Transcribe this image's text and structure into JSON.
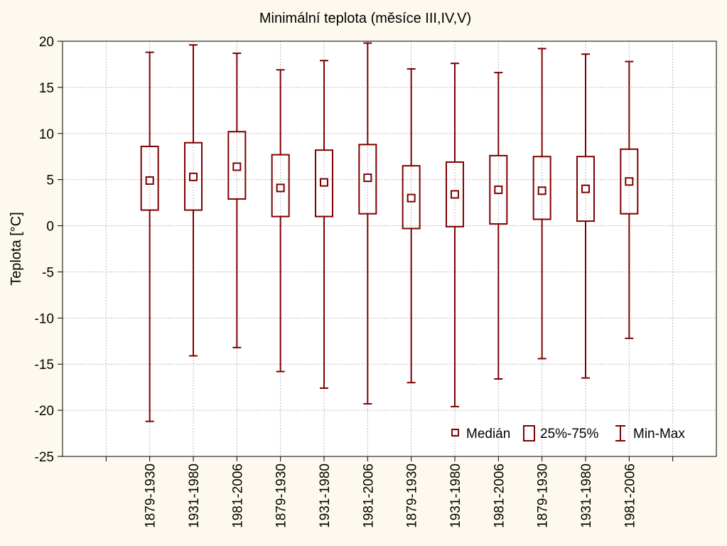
{
  "chart_data": {
    "type": "boxplot",
    "title": "Minimální teplota (měsíce III,IV,V)",
    "xlabel": "",
    "ylabel": "Teplota [°C]",
    "ylim": [
      -25,
      20
    ],
    "yticks": [
      20,
      15,
      10,
      5,
      0,
      -5,
      -10,
      -15,
      -20,
      -25
    ],
    "ytick_labels": [
      "20",
      "15",
      "10",
      "5",
      "0",
      "-5",
      "-10",
      "-15",
      "-20",
      "-25"
    ],
    "grid": true,
    "categories": [
      "1879-1930",
      "1931-1980",
      "1981-2006",
      "1879-1930",
      "1931-1980",
      "1981-2006",
      "1879-1930",
      "1931-1980",
      "1981-2006",
      "1879-1930",
      "1931-1980",
      "1981-2006"
    ],
    "boxes": [
      {
        "min": -21.2,
        "q1": 1.7,
        "median": 4.9,
        "q3": 8.6,
        "max": 18.8
      },
      {
        "min": -14.1,
        "q1": 1.7,
        "median": 5.3,
        "q3": 9.0,
        "max": 19.6
      },
      {
        "min": -13.2,
        "q1": 2.9,
        "median": 6.4,
        "q3": 10.2,
        "max": 18.7
      },
      {
        "min": -15.8,
        "q1": 1.0,
        "median": 4.1,
        "q3": 7.7,
        "max": 16.9
      },
      {
        "min": -17.6,
        "q1": 1.0,
        "median": 4.7,
        "q3": 8.2,
        "max": 17.9
      },
      {
        "min": -19.3,
        "q1": 1.3,
        "median": 5.2,
        "q3": 8.8,
        "max": 19.8
      },
      {
        "min": -17.0,
        "q1": -0.3,
        "median": 3.0,
        "q3": 6.5,
        "max": 17.0
      },
      {
        "min": -19.6,
        "q1": -0.1,
        "median": 3.4,
        "q3": 6.9,
        "max": 17.6
      },
      {
        "min": -16.6,
        "q1": 0.2,
        "median": 3.9,
        "q3": 7.6,
        "max": 16.6
      },
      {
        "min": -14.4,
        "q1": 0.7,
        "median": 3.8,
        "q3": 7.5,
        "max": 19.2
      },
      {
        "min": -16.5,
        "q1": 0.5,
        "median": 4.0,
        "q3": 7.5,
        "max": 18.6
      },
      {
        "min": -12.2,
        "q1": 1.3,
        "median": 4.8,
        "q3": 8.3,
        "max": 17.8
      }
    ],
    "legend": {
      "position": "bottom-right",
      "items": [
        {
          "label": "Medián",
          "icon": "median-square-icon"
        },
        {
          "label": "25%-75%",
          "icon": "box-icon"
        },
        {
          "label": "Min-Max",
          "icon": "whisker-icon"
        }
      ]
    },
    "colors": {
      "series": "#7f0000",
      "background": "#fdf9ee",
      "plot_background": "#ffffff",
      "grid": "#b8b8b8"
    }
  }
}
